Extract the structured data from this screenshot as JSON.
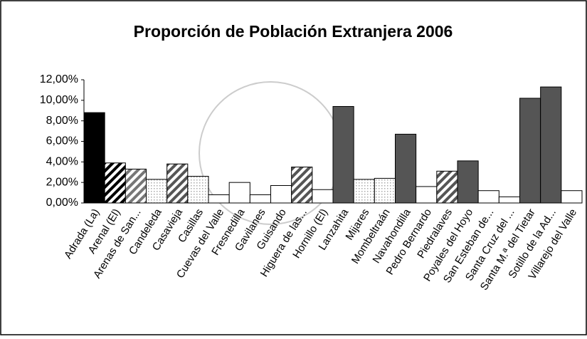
{
  "chart_data": {
    "type": "bar",
    "title": "Proporción de Población Extranjera 2006",
    "categories": [
      "Adrada (La)",
      "Arenal (El)",
      "Arenas de San...",
      "Candeleda",
      "Casavieja",
      "Casillas",
      "Cuevas del Valle",
      "Fresnedilla",
      "Gavilanes",
      "Guisando",
      "Higuera de las...",
      "Hornillo (El)",
      "Lanzahita",
      "Mijares",
      "Mombeltraán",
      "Navahondilla",
      "Pedro Bernardo",
      "Piedralaves",
      "Poyales del Hoyo",
      "San Esteban de...",
      "Santa Cruz del ...",
      "Santa M.ª del Tietar",
      "Sotillo de la Ad...",
      "Villarejo del Valle"
    ],
    "values": [
      8.8,
      3.9,
      3.3,
      2.3,
      3.8,
      2.6,
      0.8,
      2.0,
      0.8,
      1.7,
      3.5,
      1.3,
      9.4,
      2.3,
      2.4,
      6.7,
      1.6,
      3.1,
      4.1,
      1.2,
      0.6,
      10.2,
      11.3,
      1.2
    ],
    "colors": [
      "#000000",
      "#000000",
      "#777777",
      "#aaaaaa",
      "#555555",
      "#aaaaaa",
      "#ffffff",
      "#ffffff",
      "#ffffff",
      "#ffffff",
      "#555555",
      "#ffffff",
      "#555555",
      "#aaaaaa",
      "#aaaaaa",
      "#555555",
      "#ffffff",
      "#555555",
      "#555555",
      "#ffffff",
      "#ffffff",
      "#555555",
      "#555555",
      "#ffffff"
    ],
    "patterns": [
      "solid",
      "hatch",
      "hatch",
      "dots",
      "hatch",
      "dots",
      "solid",
      "solid",
      "solid",
      "solid",
      "hatch",
      "solid",
      "solid",
      "dots",
      "dots",
      "solid",
      "solid",
      "hatch",
      "solid",
      "solid",
      "solid",
      "solid",
      "solid",
      "solid"
    ],
    "ylim": [
      0,
      12
    ],
    "yticks": [
      {
        "value": 0,
        "label": "0,00%"
      },
      {
        "value": 2,
        "label": "2,00%"
      },
      {
        "value": 4,
        "label": "4,00%"
      },
      {
        "value": 6,
        "label": "6,00%"
      },
      {
        "value": 8,
        "label": "8,00%"
      },
      {
        "value": 10,
        "label": "10,00%"
      },
      {
        "value": 12,
        "label": "12,00%"
      }
    ],
    "grid": false
  }
}
